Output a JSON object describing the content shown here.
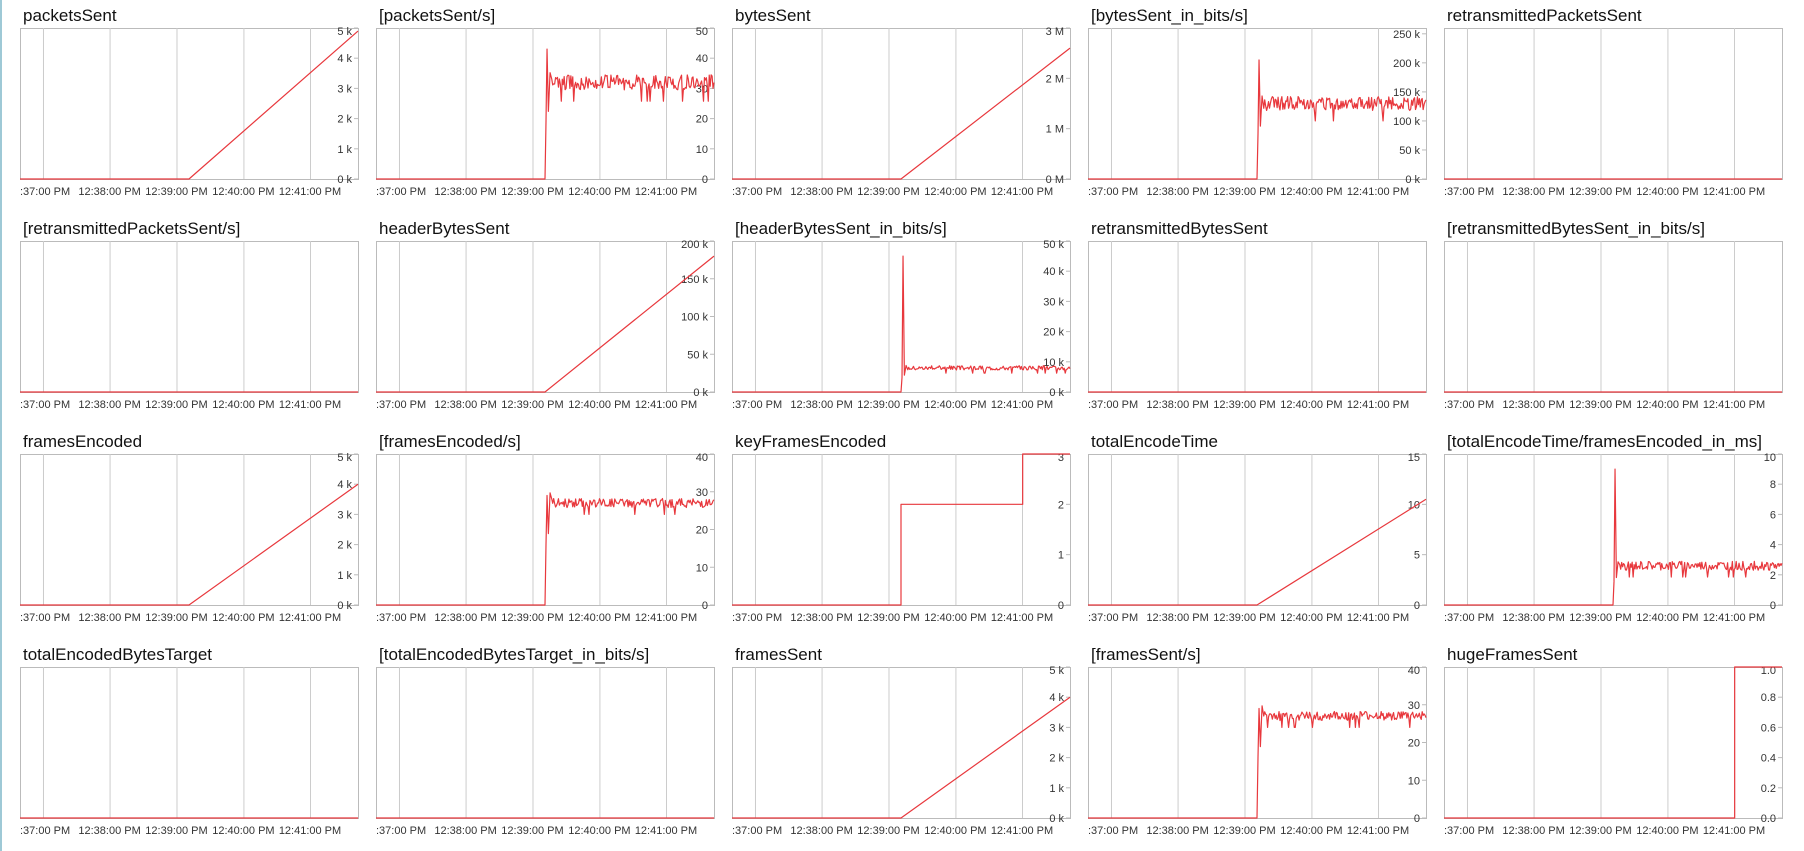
{
  "colors": {
    "series": "#e8383d",
    "grid": "#cccccc",
    "frame": "#bbbbbb",
    "axis_text": "#333333",
    "left_border": "#9ec9d6"
  },
  "x_tick_labels": [
    ":37:00 PM",
    "12:38:00 PM",
    "12:39:00 PM",
    "12:40:00 PM",
    "12:41:00 PM"
  ],
  "chart_data": [
    {
      "type": "line",
      "title": "packetsSent",
      "ylim": [
        0,
        5000
      ],
      "y_ticks": [
        0,
        1000,
        2000,
        3000,
        4000,
        5000
      ],
      "y_tick_labels": [
        "0 k",
        "1 k",
        "2 k",
        "3 k",
        "4 k",
        "5 k"
      ],
      "shape": "ramp",
      "series": [
        {
          "x": [
            0,
            0.5,
            1.0
          ],
          "y": [
            0,
            0,
            4900
          ]
        }
      ]
    },
    {
      "type": "line",
      "title": "[packetsSent/s]",
      "ylim": [
        0,
        50
      ],
      "y_ticks": [
        0,
        10,
        20,
        30,
        40,
        50
      ],
      "y_tick_labels": [
        "0",
        "10",
        "20",
        "30",
        "40",
        "50"
      ],
      "shape": "noisy",
      "series": [
        {
          "x": [
            0,
            0.5,
            1.0
          ],
          "y": [
            0,
            0,
            32
          ],
          "noise_amplitude": 2.5,
          "spike": 43
        }
      ]
    },
    {
      "type": "line",
      "title": "bytesSent",
      "ylim": [
        0,
        3000000
      ],
      "y_ticks": [
        0,
        1000000,
        2000000,
        3000000
      ],
      "y_tick_labels": [
        "0 M",
        "1 M",
        "2 M",
        "3 M"
      ],
      "shape": "ramp",
      "series": [
        {
          "x": [
            0,
            0.5,
            1.0
          ],
          "y": [
            0,
            0,
            2600000
          ]
        }
      ]
    },
    {
      "type": "line",
      "title": "[bytesSent_in_bits/s]",
      "ylim": [
        0,
        260000
      ],
      "y_ticks": [
        0,
        50000,
        100000,
        150000,
        200000,
        250000
      ],
      "y_tick_labels": [
        "0 k",
        "50 k",
        "100 k",
        "150 k",
        "200 k",
        "250 k"
      ],
      "shape": "noisy",
      "series": [
        {
          "x": [
            0,
            0.5,
            1.0
          ],
          "y": [
            0,
            0,
            130000
          ],
          "noise_amplitude": 12000,
          "spike": 205000
        }
      ]
    },
    {
      "type": "line",
      "title": "retransmittedPacketsSent",
      "ylim": [
        0,
        1
      ],
      "y_ticks": [],
      "y_tick_labels": [],
      "shape": "flat",
      "series": [
        {
          "x": [
            0,
            1.0
          ],
          "y": [
            0,
            0
          ]
        }
      ]
    },
    {
      "type": "line",
      "title": "[retransmittedPacketsSent/s]",
      "ylim": [
        0,
        1
      ],
      "y_ticks": [],
      "y_tick_labels": [],
      "shape": "flat",
      "series": [
        {
          "x": [
            0,
            1.0
          ],
          "y": [
            0,
            0
          ]
        }
      ]
    },
    {
      "type": "line",
      "title": "headerBytesSent",
      "ylim": [
        0,
        200000
      ],
      "y_ticks": [
        0,
        50000,
        100000,
        150000,
        200000
      ],
      "y_tick_labels": [
        "0 k",
        "50 k",
        "100 k",
        "150 k",
        "200 k"
      ],
      "shape": "ramp",
      "series": [
        {
          "x": [
            0,
            0.5,
            1.0
          ],
          "y": [
            0,
            0,
            180000
          ]
        }
      ]
    },
    {
      "type": "line",
      "title": "[headerBytesSent_in_bits/s]",
      "ylim": [
        0,
        50000
      ],
      "y_ticks": [
        0,
        10000,
        20000,
        30000,
        40000,
        50000
      ],
      "y_tick_labels": [
        "0 k",
        "10 k",
        "20 k",
        "30 k",
        "40 k",
        "50 k"
      ],
      "shape": "noisy",
      "series": [
        {
          "x": [
            0,
            0.5,
            1.0
          ],
          "y": [
            0,
            0,
            8000
          ],
          "noise_amplitude": 700,
          "spike": 45000
        }
      ]
    },
    {
      "type": "line",
      "title": "retransmittedBytesSent",
      "ylim": [
        0,
        1
      ],
      "y_ticks": [],
      "y_tick_labels": [],
      "shape": "flat",
      "series": [
        {
          "x": [
            0,
            1.0
          ],
          "y": [
            0,
            0
          ]
        }
      ]
    },
    {
      "type": "line",
      "title": "[retransmittedBytesSent_in_bits/s]",
      "ylim": [
        0,
        1
      ],
      "y_ticks": [],
      "y_tick_labels": [],
      "shape": "flat",
      "series": [
        {
          "x": [
            0,
            1.0
          ],
          "y": [
            0,
            0
          ]
        }
      ]
    },
    {
      "type": "line",
      "title": "framesEncoded",
      "ylim": [
        0,
        5000
      ],
      "y_ticks": [
        0,
        1000,
        2000,
        3000,
        4000,
        5000
      ],
      "y_tick_labels": [
        "0 k",
        "1 k",
        "2 k",
        "3 k",
        "4 k",
        "5 k"
      ],
      "shape": "ramp",
      "series": [
        {
          "x": [
            0,
            0.5,
            1.0
          ],
          "y": [
            0,
            0,
            4000
          ]
        }
      ]
    },
    {
      "type": "line",
      "title": "[framesEncoded/s]",
      "ylim": [
        0,
        40
      ],
      "y_ticks": [
        0,
        10,
        20,
        30,
        40
      ],
      "y_tick_labels": [
        "0",
        "10",
        "20",
        "30",
        "40"
      ],
      "shape": "noisy",
      "series": [
        {
          "x": [
            0,
            0.5,
            1.0
          ],
          "y": [
            0,
            0,
            27
          ],
          "noise_amplitude": 1.2,
          "spike": 29
        }
      ]
    },
    {
      "type": "line",
      "title": "keyFramesEncoded",
      "ylim": [
        0,
        3
      ],
      "y_ticks": [
        0,
        1,
        2,
        3
      ],
      "y_tick_labels": [
        "0",
        "1",
        "2",
        "3"
      ],
      "shape": "step",
      "series": [
        {
          "x": [
            0,
            0.5,
            0.5,
            0.86,
            0.86,
            1.0
          ],
          "y": [
            0,
            0,
            2,
            2,
            3,
            3
          ]
        }
      ]
    },
    {
      "type": "line",
      "title": "totalEncodeTime",
      "ylim": [
        0,
        15
      ],
      "y_ticks": [
        0,
        5,
        10,
        15
      ],
      "y_tick_labels": [
        "0",
        "5",
        "10",
        "15"
      ],
      "shape": "ramp",
      "series": [
        {
          "x": [
            0,
            0.5,
            1.0
          ],
          "y": [
            0,
            0,
            10.5
          ]
        }
      ]
    },
    {
      "type": "line",
      "title": "[totalEncodeTime/framesEncoded_in_ms]",
      "ylim": [
        0,
        10
      ],
      "y_ticks": [
        0,
        2,
        4,
        6,
        8,
        10
      ],
      "y_tick_labels": [
        "0",
        "2",
        "4",
        "6",
        "8",
        "10"
      ],
      "shape": "noisy",
      "series": [
        {
          "x": [
            0,
            0.5,
            1.0
          ],
          "y": [
            0,
            0,
            2.6
          ],
          "noise_amplitude": 0.3,
          "spike": 9
        }
      ]
    },
    {
      "type": "line",
      "title": "totalEncodedBytesTarget",
      "ylim": [
        0,
        1
      ],
      "y_ticks": [],
      "y_tick_labels": [],
      "shape": "flat",
      "series": [
        {
          "x": [
            0,
            1.0
          ],
          "y": [
            0,
            0
          ]
        }
      ]
    },
    {
      "type": "line",
      "title": "[totalEncodedBytesTarget_in_bits/s]",
      "ylim": [
        0,
        1
      ],
      "y_ticks": [],
      "y_tick_labels": [],
      "shape": "flat",
      "series": [
        {
          "x": [
            0,
            1.0
          ],
          "y": [
            0,
            0
          ]
        }
      ]
    },
    {
      "type": "line",
      "title": "framesSent",
      "ylim": [
        0,
        5000
      ],
      "y_ticks": [
        0,
        1000,
        2000,
        3000,
        4000,
        5000
      ],
      "y_tick_labels": [
        "0 k",
        "1 k",
        "2 k",
        "3 k",
        "4 k",
        "5 k"
      ],
      "shape": "ramp",
      "series": [
        {
          "x": [
            0,
            0.5,
            1.0
          ],
          "y": [
            0,
            0,
            4000
          ]
        }
      ]
    },
    {
      "type": "line",
      "title": "[framesSent/s]",
      "ylim": [
        0,
        40
      ],
      "y_ticks": [
        0,
        10,
        20,
        30,
        40
      ],
      "y_tick_labels": [
        "0",
        "10",
        "20",
        "30",
        "40"
      ],
      "shape": "noisy",
      "series": [
        {
          "x": [
            0,
            0.5,
            1.0
          ],
          "y": [
            0,
            0,
            27
          ],
          "noise_amplitude": 1.2,
          "spike": 29
        }
      ]
    },
    {
      "type": "line",
      "title": "hugeFramesSent",
      "ylim": [
        0,
        1.0
      ],
      "y_ticks": [
        0,
        0.2,
        0.4,
        0.6,
        0.8,
        1.0
      ],
      "y_tick_labels": [
        "0.0",
        "0.2",
        "0.4",
        "0.6",
        "0.8",
        "1.0"
      ],
      "shape": "step",
      "series": [
        {
          "x": [
            0,
            0.86,
            0.86,
            1.0
          ],
          "y": [
            0,
            0,
            1.0,
            1.0
          ]
        }
      ]
    }
  ]
}
